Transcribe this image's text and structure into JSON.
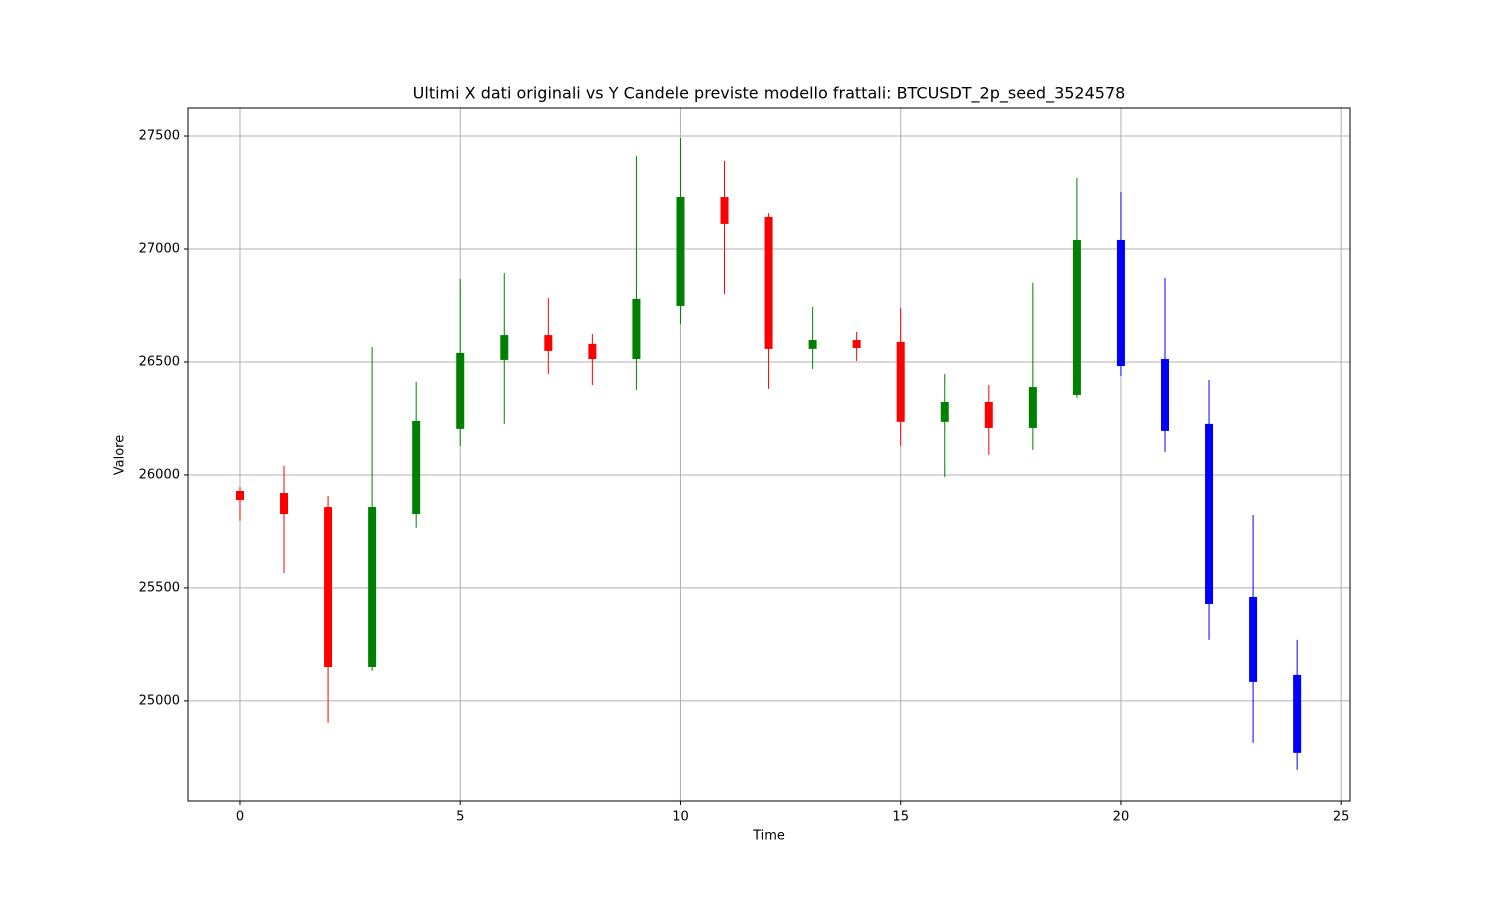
{
  "chart_data": {
    "type": "candlestick",
    "title": "Ultimi X dati originali vs Y Candele previste modello frattali: BTCUSDT_2p_seed_3524578",
    "x_label": "Time",
    "y_label": "Valore",
    "x": [
      0,
      1,
      2,
      3,
      4,
      5,
      6,
      7,
      8,
      9,
      10,
      11,
      12,
      13,
      14,
      15,
      16,
      17,
      18,
      19,
      20,
      21,
      22,
      23,
      24
    ],
    "open": [
      25929,
      25920,
      25858,
      25150,
      25827,
      26204,
      26509,
      26619,
      26580,
      26513,
      26748,
      27230,
      27142,
      26558,
      26597,
      26589,
      26235,
      26323,
      26208,
      26354,
      27040,
      26513,
      26226,
      25460,
      25115
    ],
    "high": [
      25947,
      26040,
      25907,
      26566,
      26412,
      26867,
      26894,
      26783,
      26624,
      27412,
      27491,
      27390,
      27159,
      26743,
      26633,
      26739,
      26447,
      26398,
      26850,
      27314,
      27252,
      26872,
      26420,
      25823,
      25270
    ],
    "low": [
      25797,
      25566,
      24903,
      25133,
      25766,
      26128,
      26226,
      26447,
      26398,
      26376,
      26668,
      26801,
      26381,
      26469,
      26504,
      26128,
      25991,
      26089,
      26111,
      26341,
      26438,
      26102,
      25270,
      24814,
      24695
    ],
    "close": [
      25889,
      25827,
      25150,
      25858,
      26239,
      26540,
      26619,
      26549,
      26513,
      26779,
      27230,
      27111,
      26558,
      26597,
      26562,
      26235,
      26323,
      26208,
      26389,
      27040,
      26482,
      26195,
      25429,
      25084,
      24770
    ],
    "colors": [
      "red",
      "red",
      "red",
      "green",
      "green",
      "green",
      "green",
      "red",
      "red",
      "green",
      "green",
      "red",
      "red",
      "green",
      "red",
      "red",
      "green",
      "red",
      "green",
      "green",
      "blue",
      "blue",
      "blue",
      "blue",
      "blue"
    ],
    "xlim": [
      -1.18,
      25.2
    ],
    "ylim": [
      24557,
      27624
    ],
    "xticks": [
      0,
      5,
      10,
      15,
      20,
      25
    ],
    "yticks": [
      25000,
      25500,
      26000,
      26500,
      27000,
      27500
    ],
    "grid": true
  }
}
